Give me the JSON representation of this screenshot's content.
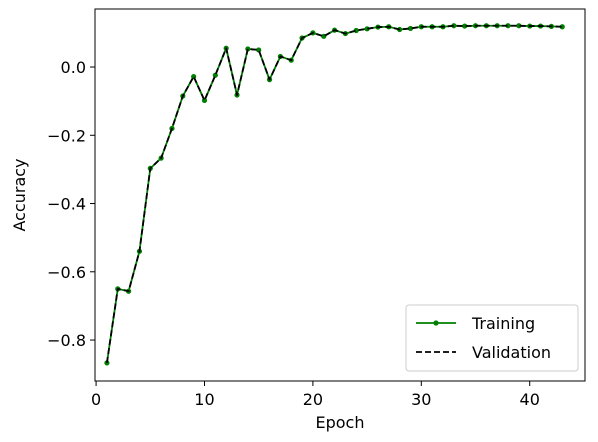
{
  "chart_data": {
    "type": "line",
    "title": "",
    "xlabel": "Epoch",
    "ylabel": "Accuracy",
    "xlim": [
      -0.1,
      45.1
    ],
    "ylim": [
      -0.92,
      0.17
    ],
    "xticks": [
      0,
      10,
      20,
      30,
      40
    ],
    "xtick_labels": [
      "0",
      "10",
      "20",
      "30",
      "40"
    ],
    "yticks": [
      -0.8,
      -0.6,
      -0.4,
      -0.2,
      0.0
    ],
    "ytick_labels": [
      "−0.8",
      "−0.6",
      "−0.4",
      "−0.2",
      "0.0"
    ],
    "grid": false,
    "legend_position": "lower-right",
    "x": [
      1,
      2,
      3,
      4,
      5,
      6,
      7,
      8,
      9,
      10,
      11,
      12,
      13,
      14,
      15,
      16,
      17,
      18,
      19,
      20,
      21,
      22,
      23,
      24,
      25,
      26,
      27,
      28,
      29,
      30,
      31,
      32,
      33,
      34,
      35,
      36,
      37,
      38,
      39,
      40,
      41,
      42,
      43
    ],
    "series": [
      {
        "name": "Training",
        "color": "#008000",
        "style": "solid-with-dots",
        "values": [
          -0.867,
          -0.65,
          -0.657,
          -0.54,
          -0.297,
          -0.267,
          -0.18,
          -0.085,
          -0.028,
          -0.098,
          -0.024,
          0.055,
          -0.082,
          0.053,
          0.05,
          -0.037,
          0.031,
          0.02,
          0.085,
          0.1,
          0.09,
          0.108,
          0.098,
          0.107,
          0.112,
          0.117,
          0.118,
          0.11,
          0.113,
          0.118,
          0.118,
          0.118,
          0.121,
          0.12,
          0.121,
          0.121,
          0.121,
          0.121,
          0.121,
          0.12,
          0.12,
          0.119,
          0.118
        ]
      },
      {
        "name": "Validation",
        "color": "#000000",
        "style": "dashed",
        "values": [
          -0.867,
          -0.65,
          -0.657,
          -0.54,
          -0.297,
          -0.267,
          -0.18,
          -0.085,
          -0.028,
          -0.098,
          -0.024,
          0.055,
          -0.082,
          0.053,
          0.05,
          -0.037,
          0.031,
          0.02,
          0.085,
          0.1,
          0.09,
          0.108,
          0.098,
          0.107,
          0.112,
          0.117,
          0.118,
          0.11,
          0.113,
          0.118,
          0.118,
          0.118,
          0.121,
          0.12,
          0.121,
          0.121,
          0.121,
          0.121,
          0.121,
          0.12,
          0.12,
          0.119,
          0.118
        ]
      }
    ]
  }
}
